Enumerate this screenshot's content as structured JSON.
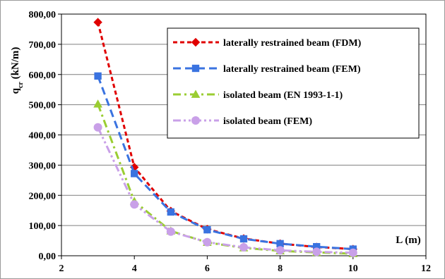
{
  "chart_data": {
    "type": "line",
    "ylabel": {
      "main": "q",
      "sub": "cr",
      "unit": " (kN/m)"
    },
    "xlabel": "L (m)",
    "xlim": [
      2,
      12
    ],
    "ylim": [
      0,
      800
    ],
    "xticks": [
      2,
      4,
      6,
      8,
      10,
      12
    ],
    "yticks": [
      0,
      100,
      200,
      300,
      400,
      500,
      600,
      700,
      800
    ],
    "ytick_labels": [
      "0,00",
      "100,00",
      "200,00",
      "300,00",
      "400,00",
      "500,00",
      "600,00",
      "700,00",
      "800,00"
    ],
    "xtick_labels": [
      "2",
      "4",
      "6",
      "8",
      "10",
      "12"
    ],
    "grid": "horizontal",
    "legend_position": "top-right",
    "series": [
      {
        "name": "laterally restrained beam (FDM)",
        "color": "#e00000",
        "marker": "diamond",
        "dash": "dashed",
        "x": [
          3,
          4,
          5,
          6,
          7,
          8,
          9,
          10
        ],
        "y": [
          773,
          293,
          148,
          88,
          57,
          40,
          29,
          22
        ]
      },
      {
        "name": "laterally restrained beam (FEM)",
        "color": "#3a73e0",
        "marker": "square",
        "dash": "long-dash",
        "x": [
          3,
          4,
          5,
          6,
          7,
          8,
          9,
          10
        ],
        "y": [
          595,
          272,
          145,
          86,
          56,
          40,
          30,
          22
        ]
      },
      {
        "name": "isolated beam (EN 1993-1-1)",
        "color": "#9acd32",
        "marker": "triangle",
        "dash": "dash-dot",
        "x": [
          3,
          4,
          5,
          6,
          7,
          8,
          9,
          10
        ],
        "y": [
          502,
          180,
          82,
          44,
          26,
          16,
          11,
          7
        ]
      },
      {
        "name": "isolated beam (FEM)",
        "color": "#c9a0e8",
        "marker": "circle",
        "dash": "dash-dot-dot",
        "x": [
          3,
          4,
          5,
          6,
          7,
          8,
          9,
          10
        ],
        "y": [
          425,
          170,
          80,
          45,
          28,
          18,
          13,
          10
        ]
      }
    ]
  }
}
